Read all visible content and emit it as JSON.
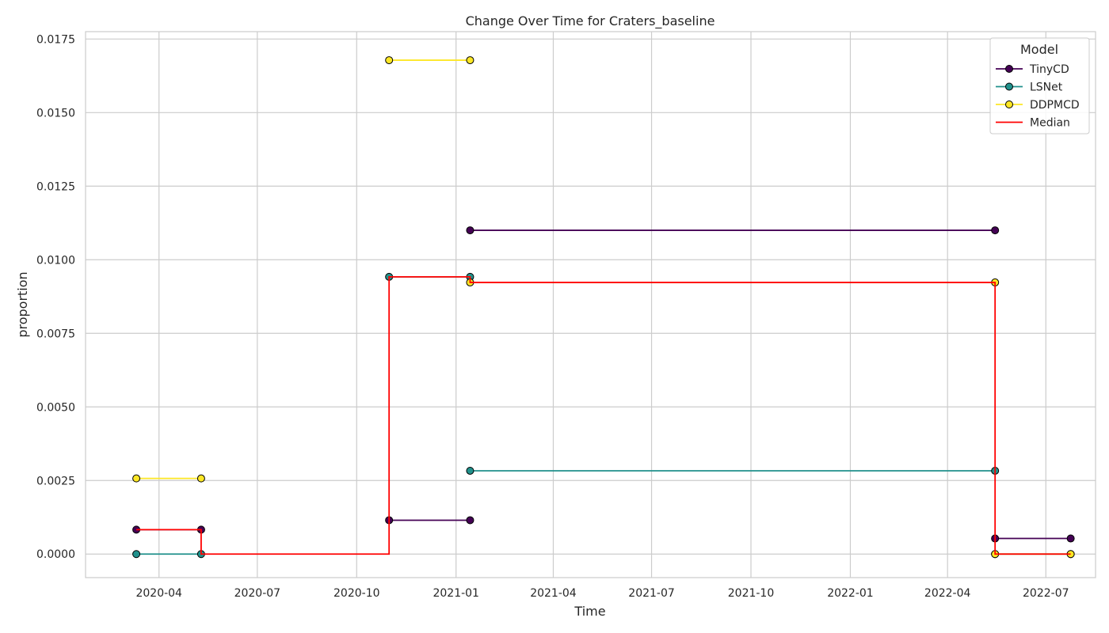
{
  "chart_data": {
    "type": "line",
    "drawstyle": "steps-post",
    "title": "Change Over Time for Craters_baseline",
    "xlabel": "Time",
    "ylabel": "proportion",
    "x_tick_labels": [
      "2020-04",
      "2020-07",
      "2020-10",
      "2021-01",
      "2021-04",
      "2021-07",
      "2021-10",
      "2022-01",
      "2022-04",
      "2022-07"
    ],
    "x_ticks": [
      "2020-04-01",
      "2020-07-01",
      "2020-10-01",
      "2021-01-01",
      "2021-04-01",
      "2021-07-01",
      "2021-10-01",
      "2022-01-01",
      "2022-04-01",
      "2022-07-01"
    ],
    "y_tick_labels": [
      "0.0000",
      "0.0025",
      "0.0050",
      "0.0075",
      "0.0100",
      "0.0125",
      "0.0150",
      "0.0175"
    ],
    "y_ticks": [
      0,
      0.0025,
      0.005,
      0.0075,
      0.01,
      0.0125,
      0.015,
      0.0175
    ],
    "xlim": [
      "2020-01-24",
      "2022-08-16"
    ],
    "ylim": [
      -0.0008,
      0.01775
    ],
    "grid": true,
    "legend": {
      "title": "Model",
      "placement": "top-right"
    },
    "series": [
      {
        "name": "TinyCD",
        "color": "#440154",
        "marker": true,
        "segments": [
          [
            [
              "2020-03-11",
              0.00083
            ],
            [
              "2020-05-10",
              0.00083
            ]
          ],
          [
            [
              "2020-10-31",
              0.00115
            ],
            [
              "2021-01-14",
              0.00115
            ]
          ],
          [
            [
              "2021-01-14",
              0.011
            ],
            [
              "2022-05-15",
              0.011
            ]
          ],
          [
            [
              "2022-05-15",
              0.00053
            ],
            [
              "2022-07-24",
              0.00053
            ]
          ]
        ]
      },
      {
        "name": "LSNet",
        "color": "#21918c",
        "marker": true,
        "segments": [
          [
            [
              "2020-03-11",
              0
            ],
            [
              "2020-05-10",
              0
            ]
          ],
          [
            [
              "2020-10-31",
              0.00942
            ],
            [
              "2021-01-14",
              0.00942
            ]
          ],
          [
            [
              "2021-01-14",
              0.00283
            ],
            [
              "2022-05-15",
              0.00283
            ]
          ],
          [
            [
              "2022-05-15",
              0
            ],
            [
              "2022-07-24",
              0
            ]
          ]
        ]
      },
      {
        "name": "DDPMCD",
        "color": "#fde725",
        "marker": true,
        "segments": [
          [
            [
              "2020-03-11",
              0.00257
            ],
            [
              "2020-05-10",
              0.00257
            ]
          ],
          [
            [
              "2020-10-31",
              0.01678
            ],
            [
              "2021-01-14",
              0.01678
            ]
          ],
          [
            [
              "2021-01-14",
              0.00923
            ],
            [
              "2022-05-15",
              0.00923
            ]
          ],
          [
            [
              "2022-05-15",
              0
            ],
            [
              "2022-07-24",
              0
            ]
          ]
        ]
      },
      {
        "name": "Median",
        "color": "#ff0000",
        "marker": false,
        "points": [
          [
            "2020-03-11",
            0.00083
          ],
          [
            "2020-05-10",
            0.00083
          ],
          [
            "2020-05-10",
            0
          ],
          [
            "2020-10-31",
            0
          ],
          [
            "2020-10-31",
            0.00942
          ],
          [
            "2021-01-14",
            0.00942
          ],
          [
            "2021-01-14",
            0.00923
          ],
          [
            "2022-05-15",
            0.00923
          ],
          [
            "2022-05-15",
            0
          ],
          [
            "2022-07-24",
            0
          ]
        ]
      }
    ]
  }
}
